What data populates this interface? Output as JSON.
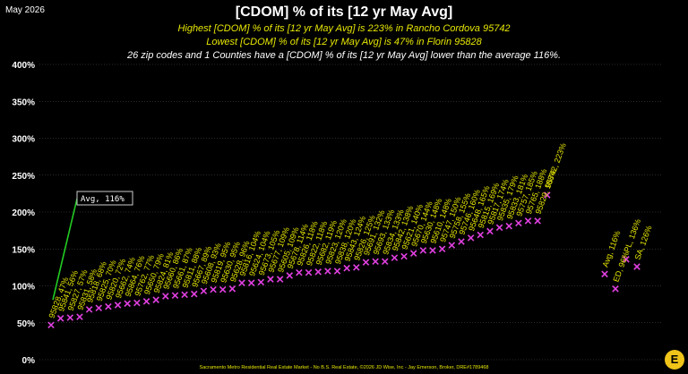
{
  "header": {
    "date": "May 2026",
    "title": "[CDOM] % of its [12 yr May Avg]",
    "line1": "Highest [CDOM] % of its [12 yr May Avg] is 223% in Rancho Cordova 95742",
    "line2": "Lowest [CDOM] % of its [12 yr May Avg] is 47% in Florin 95828",
    "line3": "26 zip codes and 1 Counties have a [CDOM] % of its [12 yr May Avg] lower than the average 116%."
  },
  "footer": "Sacramento Metro Residential Real Estate Market - No B.S. Real Estate, ©2026 JD Wise, Inc - Jay Emerson, Broker, DRE#1789468",
  "logo_text": "E",
  "colors": {
    "background": "#000000",
    "marker": "#e040e0",
    "label": "#e6e600",
    "grid": "#555555",
    "avg_line": "#22cc22"
  },
  "chart_data": {
    "type": "scatter",
    "marker": "x",
    "ylim": [
      0,
      400
    ],
    "yticks": [
      "0%",
      "50%",
      "100%",
      "150%",
      "200%",
      "250%",
      "300%",
      "350%",
      "400%"
    ],
    "grid": true,
    "annotation": {
      "text": "Avg, 116%",
      "value": 116
    },
    "points": [
      {
        "label": "95828, 47%",
        "value": 47
      },
      {
        "label": "95841, 56%",
        "value": 56
      },
      {
        "label": "95827, 57%",
        "value": 57
      },
      {
        "label": "95831, 58%",
        "value": 58
      },
      {
        "label": "95818, 68%",
        "value": 68
      },
      {
        "label": "95825, 70%",
        "value": 70
      },
      {
        "label": "95820, 72%",
        "value": 72
      },
      {
        "label": "95662, 74%",
        "value": 74
      },
      {
        "label": "95864, 76%",
        "value": 76
      },
      {
        "label": "95762, 77%",
        "value": 77
      },
      {
        "label": "95650, 79%",
        "value": 79
      },
      {
        "label": "95824, 81%",
        "value": 81
      },
      {
        "label": "95660, 86%",
        "value": 86
      },
      {
        "label": "95661, 87%",
        "value": 87
      },
      {
        "label": "95811, 88%",
        "value": 88
      },
      {
        "label": "95667, 89%",
        "value": 89
      },
      {
        "label": "95608, 93%",
        "value": 93
      },
      {
        "label": "95819, 95%",
        "value": 95
      },
      {
        "label": "95630, 95%",
        "value": 95
      },
      {
        "label": "95628, 96%",
        "value": 96
      },
      {
        "label": "95816, 104%",
        "value": 104
      },
      {
        "label": "95624, 104%",
        "value": 104
      },
      {
        "label": "95673, 105%",
        "value": 105
      },
      {
        "label": "95677, 109%",
        "value": 109
      },
      {
        "label": "95605, 109%",
        "value": 109
      },
      {
        "label": "95678, 114%",
        "value": 114
      },
      {
        "label": "95826, 118%",
        "value": 118
      },
      {
        "label": "95822, 118%",
        "value": 118
      },
      {
        "label": "95682, 119%",
        "value": 119
      },
      {
        "label": "95823, 120%",
        "value": 120
      },
      {
        "label": "95838, 120%",
        "value": 120
      },
      {
        "label": "95843, 124%",
        "value": 124
      },
      {
        "label": "95826, 125%",
        "value": 125
      },
      {
        "label": "95691, 132%",
        "value": 132
      },
      {
        "label": "95693, 133%",
        "value": 133
      },
      {
        "label": "95834, 133%",
        "value": 133
      },
      {
        "label": "95842, 138%",
        "value": 138
      },
      {
        "label": "95621, 140%",
        "value": 140
      },
      {
        "label": "95670, 144%",
        "value": 144
      },
      {
        "label": "95630, 148%",
        "value": 148
      },
      {
        "label": "95610, 148%",
        "value": 148
      },
      {
        "label": "95747, 150%",
        "value": 150
      },
      {
        "label": "95758, 155%",
        "value": 155
      },
      {
        "label": "95746, 160%",
        "value": 160
      },
      {
        "label": "95648, 165%",
        "value": 165
      },
      {
        "label": "95815, 169%",
        "value": 169
      },
      {
        "label": "95817, 174%",
        "value": 174
      },
      {
        "label": "95835, 179%",
        "value": 179
      },
      {
        "label": "95833, 181%",
        "value": 181
      },
      {
        "label": "95757, 185%",
        "value": 185
      },
      {
        "label": "95765, 188%",
        "value": 188
      },
      {
        "label": "95829, 188%",
        "value": 188
      },
      {
        "label": "95742, 223%",
        "value": 223
      },
      {
        "label": "Avg, 116%",
        "value": 116
      },
      {
        "label": "ED, 96%",
        "value": 96
      },
      {
        "label": "PL, 136%",
        "value": 136
      },
      {
        "label": "SA, 126%",
        "value": 126
      }
    ]
  }
}
